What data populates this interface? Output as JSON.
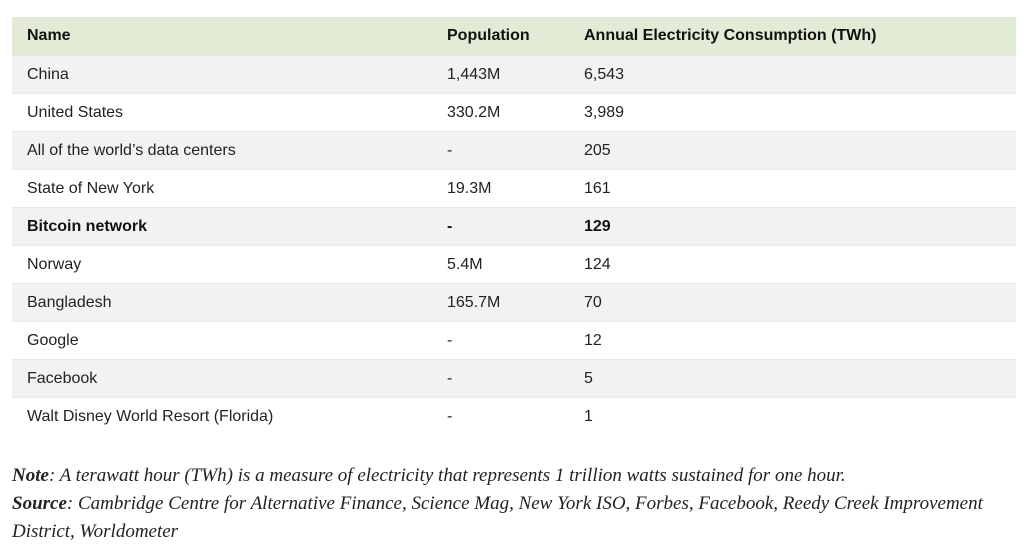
{
  "table": {
    "headers": {
      "name": "Name",
      "population": "Population",
      "consumption": "Annual Electricity Consumption (TWh)"
    },
    "rows": [
      {
        "name": "China",
        "population": "1,443M",
        "consumption": "6,543"
      },
      {
        "name": "United States",
        "population": "330.2M",
        "consumption": "3,989"
      },
      {
        "name": "All of the world’s data centers",
        "population": "-",
        "consumption": "205"
      },
      {
        "name": "State of New York",
        "population": "19.3M",
        "consumption": "161"
      },
      {
        "name": "Bitcoin network",
        "population": "-",
        "consumption": "129"
      },
      {
        "name": "Norway",
        "population": "5.4M",
        "consumption": "124"
      },
      {
        "name": "Bangladesh",
        "population": "165.7M",
        "consumption": "70"
      },
      {
        "name": "Google",
        "population": "-",
        "consumption": "12"
      },
      {
        "name": "Facebook",
        "population": "-",
        "consumption": "5"
      },
      {
        "name": "Walt Disney World Resort (Florida)",
        "population": "-",
        "consumption": "1"
      }
    ]
  },
  "notes": {
    "note_label": "Note",
    "note_text": ": A terawatt hour (TWh) is a measure of electricity that represents 1 trillion watts sustained for one hour.",
    "source_label": "Source",
    "source_text": ": Cambridge Centre for Alternative Finance, Science Mag, New York ISO, Forbes, Facebook, Reedy Creek Improvement District, Worldometer"
  },
  "colors": {
    "header_bg": "#e2ebd6",
    "stripe_bg": "#f2f2f2"
  }
}
